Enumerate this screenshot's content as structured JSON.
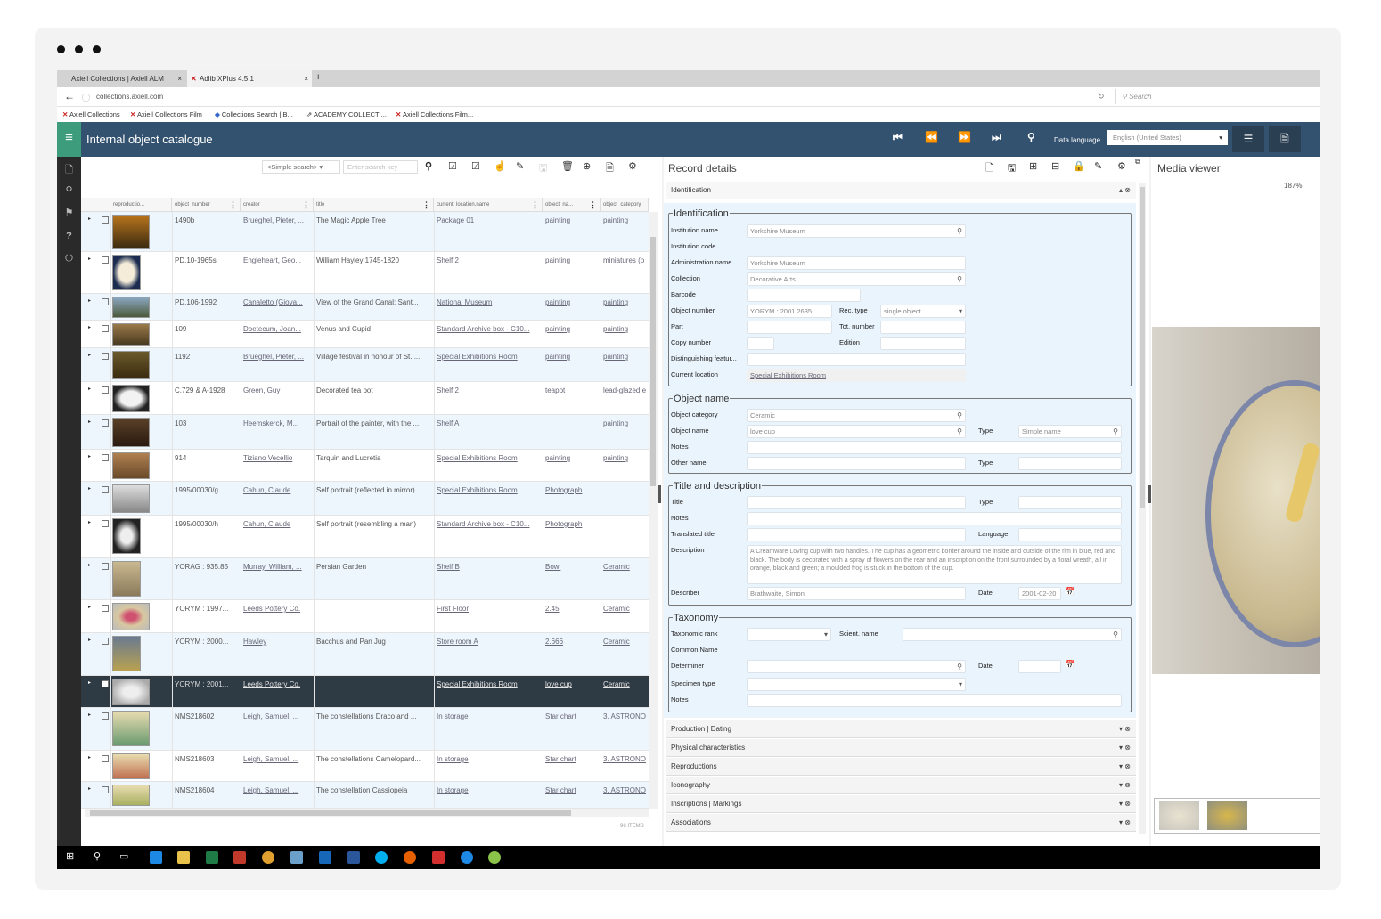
{
  "browser": {
    "tabs": [
      {
        "label": "Axiell Collections | Axiell ALM"
      },
      {
        "label": "Adlib XPlus 4.5.1"
      }
    ],
    "new_tab": "+",
    "close": "×",
    "url": "collections.axiell.com",
    "search_placeholder": "Search",
    "bookmarks": [
      "Axiell Collections",
      "Axiell Collections Film",
      "Collections Search | B...",
      "ACADEMY COLLECTI...",
      "Axiell Collections Film..."
    ]
  },
  "app": {
    "title": "Internal object catalogue",
    "data_language_label": "Data language",
    "data_language_value": "English (United States)",
    "accent": "#33526f",
    "menu_color": "#3d9c7c"
  },
  "grid": {
    "search_mode": "<Simple search>",
    "search_placeholder": "Enter search key",
    "columns": [
      "reproductio...",
      "object_number",
      "creator",
      "title",
      "current_location.name",
      "object_na...",
      "object_category"
    ],
    "rows": [
      {
        "object_number": "1490b",
        "creator": "Brueghel, Pieter, ...",
        "title": "The Magic Apple Tree",
        "location": "Package 01",
        "object_name": "painting",
        "category": "painting"
      },
      {
        "object_number": "PD.10-1965s",
        "creator": "Engleheart, Geo...",
        "title": "William Hayley 1745-1820",
        "location": "Shelf 2",
        "object_name": "painting",
        "category": "miniatures (p"
      },
      {
        "object_number": "PD.106-1992",
        "creator": "Canaletto (Giova...",
        "title": "View of the Grand Canal: Sant...",
        "location": "National Museum",
        "object_name": "painting",
        "category": "painting"
      },
      {
        "object_number": "109",
        "creator": "Doetecum, Joan...",
        "title": "Venus and Cupid",
        "location": "Standard Archive box - C10...",
        "object_name": "painting",
        "category": "painting"
      },
      {
        "object_number": "1192",
        "creator": "Brueghel, Pieter, ...",
        "title": "Village festival in honour of St. ...",
        "location": "Special Exhibitions Room",
        "object_name": "painting",
        "category": "painting"
      },
      {
        "object_number": "C.729 & A-1928",
        "creator": "Green, Guy",
        "title": "Decorated tea pot",
        "location": "Shelf 2",
        "object_name": "teapot",
        "category": "lead-glazed e"
      },
      {
        "object_number": "103",
        "creator": "Heemskerck, M...",
        "title": "Portrait of the painter, with the ...",
        "location": "Shelf A",
        "object_name": "",
        "category": "painting"
      },
      {
        "object_number": "914",
        "creator": "Tiziano Vecellio",
        "title": "Tarquin and Lucretia",
        "location": "Special Exhibitions Room",
        "object_name": "painting",
        "category": "painting"
      },
      {
        "object_number": "1995/00030/g",
        "creator": "Cahun, Claude",
        "title": "Self portrait (reflected in mirror)",
        "location": "Special Exhibitions Room",
        "object_name": "Photograph",
        "category": ""
      },
      {
        "object_number": "1995/00030/h",
        "creator": "Cahun, Claude",
        "title": "Self portrait (resembling a man)",
        "location": "Standard Archive box - C10...",
        "object_name": "Photograph",
        "category": ""
      },
      {
        "object_number": "YORAG : 935.85",
        "creator": "Murray, William, ...",
        "title": "Persian Garden",
        "location": "Shelf B",
        "object_name": "Bowl",
        "category": "Ceramic"
      },
      {
        "object_number": "YORYM : 1997...",
        "creator": "Leeds Pottery Co.",
        "title": "",
        "location": "First Floor",
        "object_name": "2.45",
        "category": "Ceramic"
      },
      {
        "object_number": "YORYM : 2000...",
        "creator": "Hawley",
        "title": "Bacchus and Pan Jug",
        "location": "Store room A",
        "object_name": "2.666",
        "category": "Ceramic"
      },
      {
        "object_number": "YORYM : 2001...",
        "creator": "Leeds Pottery Co.",
        "title": "",
        "location": "Special Exhibitions Room",
        "object_name": "love cup",
        "category": "Ceramic",
        "selected": true
      },
      {
        "object_number": "NMS218602",
        "creator": "Leigh, Samuel, ...",
        "title": "The constellations Draco and ...",
        "location": "In storage",
        "object_name": "Star chart",
        "category": "3. ASTRONO"
      },
      {
        "object_number": "NMS218603",
        "creator": "Leigh, Samuel, ...",
        "title": "The constellations Camelopard...",
        "location": "In storage",
        "object_name": "Star chart",
        "category": "3. ASTRONO"
      },
      {
        "object_number": "NMS218604",
        "creator": "Leigh, Samuel, ...",
        "title": "The constellation Cassiopeia",
        "location": "In storage",
        "object_name": "Star chart",
        "category": "3. ASTRONO"
      }
    ],
    "item_count": "96 ITEMS"
  },
  "record": {
    "title": "Record details",
    "open_section": "Identification",
    "sections": [
      {
        "legend": "Identification",
        "fields": [
          {
            "label": "Institution name",
            "value": "Yorkshire Museum",
            "type": "search"
          },
          {
            "label": "Institution code"
          },
          {
            "label": "Administration name",
            "value": "Yorkshire Museum",
            "type": "text"
          },
          {
            "label": "Collection",
            "value": "Decorative Arts",
            "type": "search"
          },
          {
            "label": "Barcode",
            "value": "",
            "type": "text"
          },
          {
            "label": "Object number",
            "value": "YORYM : 2001.2635",
            "type": "text"
          },
          {
            "label": "Rec. type",
            "value": "single object",
            "type": "select"
          },
          {
            "label": "Part",
            "value": "",
            "type": "text"
          },
          {
            "label": "Tot. number",
            "value": "",
            "type": "text"
          },
          {
            "label": "Copy number",
            "value": "",
            "type": "text"
          },
          {
            "label": "Edition",
            "value": "",
            "type": "text"
          },
          {
            "label": "Distinguishing featur...",
            "value": "",
            "type": "text"
          },
          {
            "label": "Current location",
            "value": "Special Exhibitions Room",
            "type": "link"
          }
        ]
      },
      {
        "legend": "Object name",
        "fields": [
          {
            "label": "Object category",
            "value": "Ceramic",
            "type": "search"
          },
          {
            "label": "Object name",
            "value": "love cup",
            "type": "search"
          },
          {
            "label": "Type",
            "value": "Simple name",
            "type": "search"
          },
          {
            "label": "Notes",
            "value": "",
            "type": "text"
          },
          {
            "label": "Other name",
            "value": "",
            "type": "text"
          },
          {
            "label": "Type",
            "value": "",
            "type": "text"
          }
        ]
      },
      {
        "legend": "Title and description",
        "fields": [
          {
            "label": "Title",
            "value": "",
            "type": "text"
          },
          {
            "label": "Type",
            "value": "",
            "type": "text"
          },
          {
            "label": "Notes",
            "value": "",
            "type": "text"
          },
          {
            "label": "Translated title",
            "value": "",
            "type": "text"
          },
          {
            "label": "Language",
            "value": "",
            "type": "text"
          },
          {
            "label": "Description",
            "value": "A Creamware Loving cup with two handles.  The cup has a geometric border around the inside and outside of the rim in blue, red and black.  The body is decorated with a spray of flowers on the rear and an inscription on the front surrounded by a floral wreath, all in orange, black and green; a moulded frog is stuck in the bottom of the cup.",
            "type": "textarea"
          },
          {
            "label": "Describer",
            "value": "Brathwaite, Simon",
            "type": "text"
          },
          {
            "label": "Date",
            "value": "2001-02-20",
            "type": "date"
          }
        ]
      },
      {
        "legend": "Taxonomy",
        "fields": [
          {
            "label": "Taxonomic rank",
            "value": "",
            "type": "select"
          },
          {
            "label": "Scient. name",
            "value": "",
            "type": "search"
          },
          {
            "label": "Common Name"
          },
          {
            "label": "Determiner",
            "value": "",
            "type": "search"
          },
          {
            "label": "Date",
            "value": "",
            "type": "date"
          },
          {
            "label": "Specimen type",
            "value": "",
            "type": "select"
          },
          {
            "label": "Notes",
            "value": "",
            "type": "text"
          }
        ]
      }
    ],
    "collapsed_sections": [
      "Production | Dating",
      "Physical characteristics",
      "Reproductions",
      "Iconography",
      "Inscriptions | Markings",
      "Associations"
    ]
  },
  "media": {
    "title": "Media viewer",
    "zoom": "187%"
  }
}
